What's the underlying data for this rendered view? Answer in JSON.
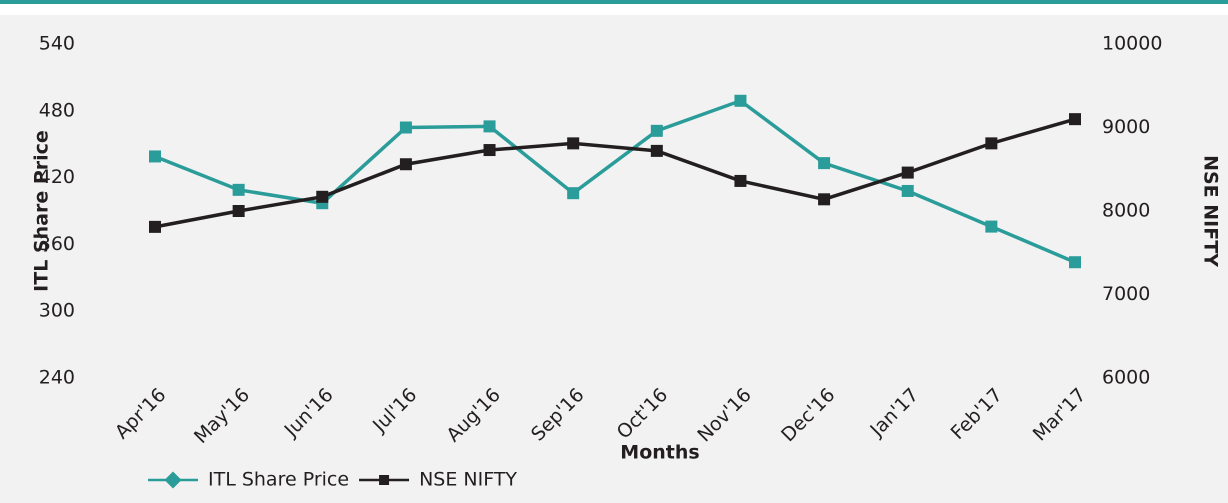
{
  "chart_data": {
    "type": "line",
    "x_label": "Months",
    "y_label": "ITL Share Price",
    "y2_label": "NSE NIFTY",
    "categories": [
      "Apr'16",
      "May'16",
      "Jun'16",
      "Jul'16",
      "Aug'16",
      "Sep'16",
      "Oct'16",
      "Nov'16",
      "Dec'16",
      "Jan'17",
      "Feb'17",
      "Mar'17"
    ],
    "series": [
      {
        "name": "ITL Share Price",
        "color": "#2a9c99",
        "values": [
          439,
          409,
          397,
          465,
          466,
          406,
          462,
          489,
          433,
          408,
          376,
          344
        ]
      },
      {
        "name": "NSE NIFTY",
        "color": "#231f20",
        "axis": "y2",
        "values": [
          7810,
          8000,
          8170,
          8560,
          8730,
          8810,
          8720,
          8360,
          8140,
          8460,
          8810,
          9100
        ]
      }
    ],
    "ylim": [
      240,
      540
    ],
    "yticks": [
      240,
      300,
      360,
      420,
      480,
      540
    ],
    "y2lim": [
      6000,
      10000
    ],
    "y2ticks": [
      6000,
      7000,
      8000,
      9000,
      10000
    ],
    "grid": false,
    "legend": "bottom-left"
  }
}
